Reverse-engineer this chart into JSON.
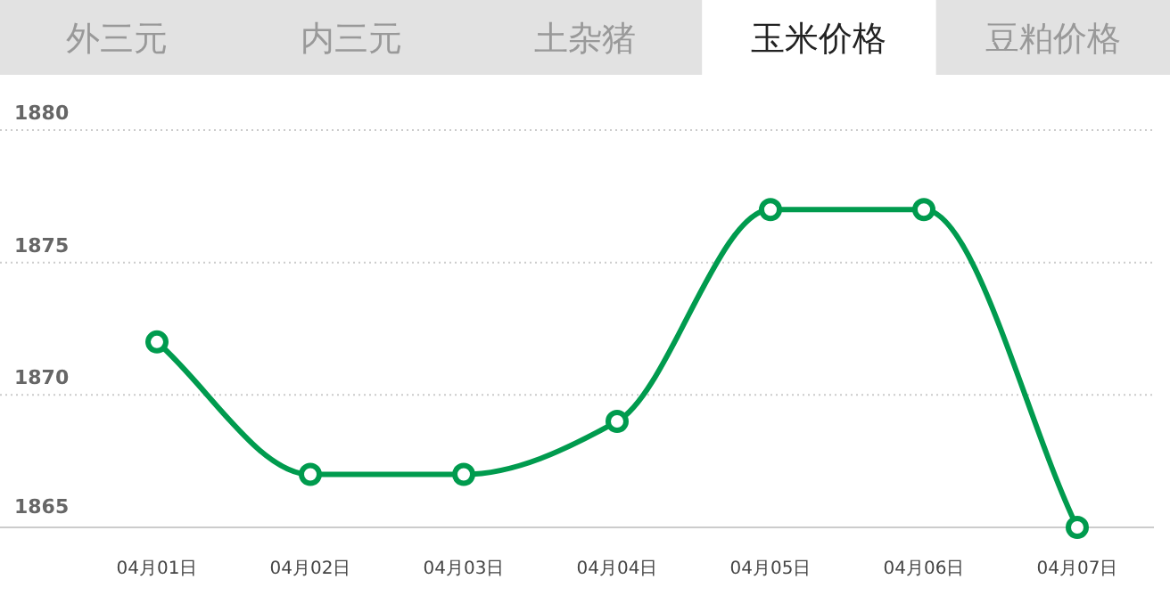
{
  "chart_data": {
    "type": "line",
    "title": "玉米价格",
    "annotations": [
      "外三元",
      "内三元",
      "土杂猪",
      "豆粕价格"
    ],
    "categories": [
      "04月01日",
      "04月02日",
      "04月03日",
      "04月04日",
      "04月05日",
      "04月06日",
      "04月07日"
    ],
    "series": [
      {
        "color": "#009b4e",
        "values": [
          1872,
          1867,
          1867,
          1869,
          1877,
          1877,
          1865
        ]
      }
    ],
    "ylim": [
      1865,
      1880
    ],
    "yticks": [
      1865,
      1870,
      1875,
      1880
    ],
    "grid": "y",
    "marker": "circle",
    "line_style": "solid"
  }
}
